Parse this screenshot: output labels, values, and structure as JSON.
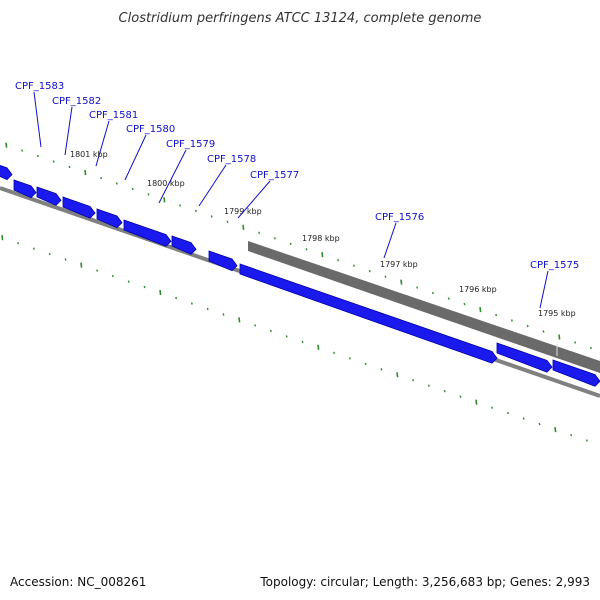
{
  "title": "Clostridium perfringens ATCC 13124, complete genome",
  "footer": {
    "accession": "Accession: NC_008261",
    "summary": "Topology: circular; Length: 3,256,683 bp; Genes: 2,993"
  },
  "colors": {
    "gene": "#1a1aee",
    "gene_edge": "#0000aa",
    "gray_feature": "#6a6a6a",
    "backbone": "#808080",
    "tick": "#2e8b2e",
    "label": "#1010c8"
  },
  "gene_labels": [
    "CPF_1583",
    "CPF_1582",
    "CPF_1581",
    "CPF_1580",
    "CPF_1579",
    "CPF_1578",
    "CPF_1577",
    "CPF_1576",
    "CPF_1575"
  ],
  "kbp_labels": [
    "1801 kbp",
    "1800 kbp",
    "1799 kbp",
    "1798 kbp",
    "1797 kbp",
    "1796 kbp",
    "1795 kbp"
  ]
}
